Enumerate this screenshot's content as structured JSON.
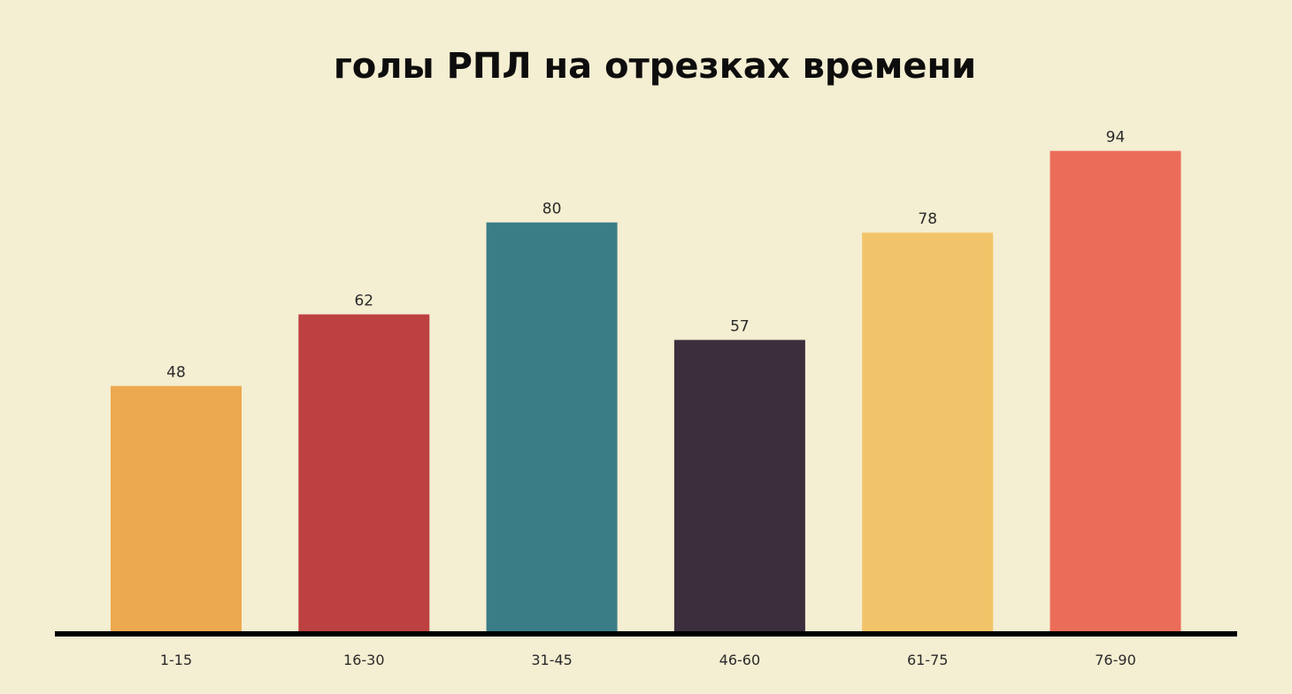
{
  "chart_data": {
    "type": "bar",
    "title": "голы РПЛ на отрезках времени",
    "categories": [
      "1-15",
      "16-30",
      "31-45",
      "46-60",
      "61-75",
      "76-90"
    ],
    "values": [
      48,
      62,
      80,
      57,
      78,
      94
    ],
    "colors": [
      "#eda94f",
      "#bd4141",
      "#3a7d87",
      "#3d2e3d",
      "#f2c469",
      "#eb6c59"
    ],
    "ylim": [
      0,
      100
    ],
    "grid": false,
    "legend": "none",
    "axis_color": "#000000",
    "background": "#f4eed2"
  }
}
